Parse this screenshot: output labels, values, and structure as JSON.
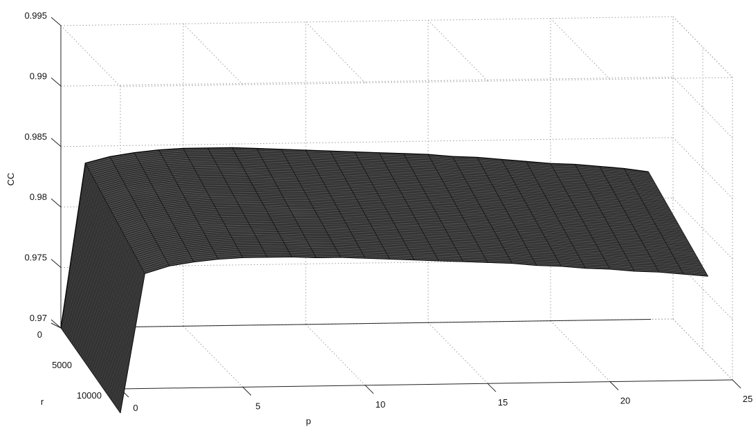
{
  "chart_data": {
    "type": "surface",
    "title": "",
    "xlabel": "p",
    "ylabel": "r",
    "zlabel": "CC",
    "x_ticks": [
      "0",
      "5",
      "10",
      "15",
      "20",
      "25"
    ],
    "y_ticks": [
      "0",
      "5000",
      "10000"
    ],
    "z_ticks": [
      "0.97",
      "0.975",
      "0.98",
      "0.985",
      "0.99",
      "0.995"
    ],
    "xlim": [
      0,
      25
    ],
    "ylim": [
      0,
      10000
    ],
    "zlim": [
      0.97,
      0.995
    ],
    "grid": true,
    "colors": {
      "surface_fill": "#4a4a4a",
      "mesh_line": "#111111",
      "grid": "#9a9a9a",
      "axis": "#222222"
    },
    "r": [
      0,
      10000
    ],
    "p": [
      0,
      1,
      2,
      3,
      4,
      5,
      6,
      7,
      8,
      9,
      10,
      11,
      12,
      13,
      14,
      15,
      16,
      17,
      18,
      19,
      20,
      21,
      22,
      23,
      24
    ],
    "series": [
      {
        "r": 0,
        "values": [
          0.97,
          0.9836,
          0.9841,
          0.9844,
          0.9846,
          0.9847,
          0.9847,
          0.9847,
          0.9846,
          0.9845,
          0.9844,
          0.9843,
          0.9842,
          0.9841,
          0.984,
          0.9839,
          0.9837,
          0.9836,
          0.9834,
          0.9832,
          0.983,
          0.9829,
          0.9827,
          0.9825,
          0.9822
        ]
      },
      {
        "r": 10000,
        "values": [
          0.968,
          0.9795,
          0.9801,
          0.9804,
          0.9806,
          0.9807,
          0.9807,
          0.9807,
          0.9806,
          0.9806,
          0.9805,
          0.9804,
          0.9803,
          0.9802,
          0.9801,
          0.98,
          0.9799,
          0.9797,
          0.9796,
          0.9794,
          0.9793,
          0.9791,
          0.979,
          0.9788,
          0.9786
        ]
      }
    ]
  }
}
